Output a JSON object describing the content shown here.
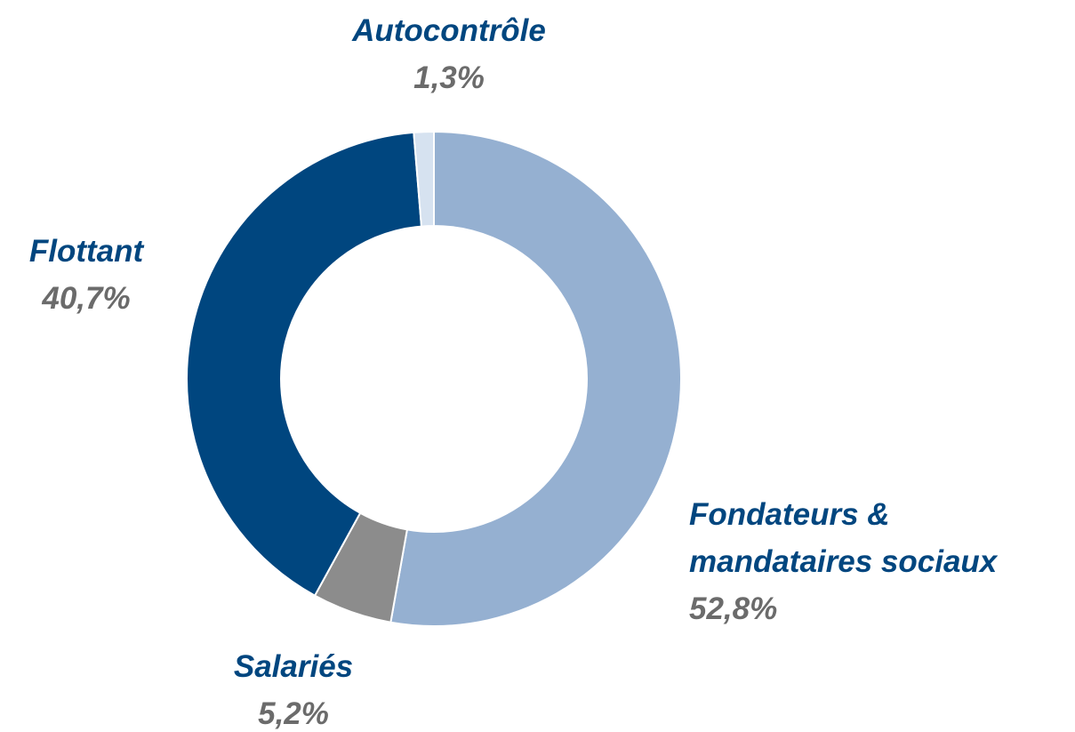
{
  "chart_data": {
    "type": "pie",
    "donut": true,
    "categories": [
      "Fondateurs & mandataires sociaux",
      "Salariés",
      "Flottant",
      "Autocontrôle"
    ],
    "values": [
      52.8,
      5.2,
      40.7,
      1.3
    ],
    "value_labels": [
      "52,8%",
      "5,2%",
      "40,7%",
      "1,3%"
    ],
    "colors": [
      "#95b0d1",
      "#8c8c8c",
      "#00467f",
      "#d6e2f0"
    ]
  }
}
